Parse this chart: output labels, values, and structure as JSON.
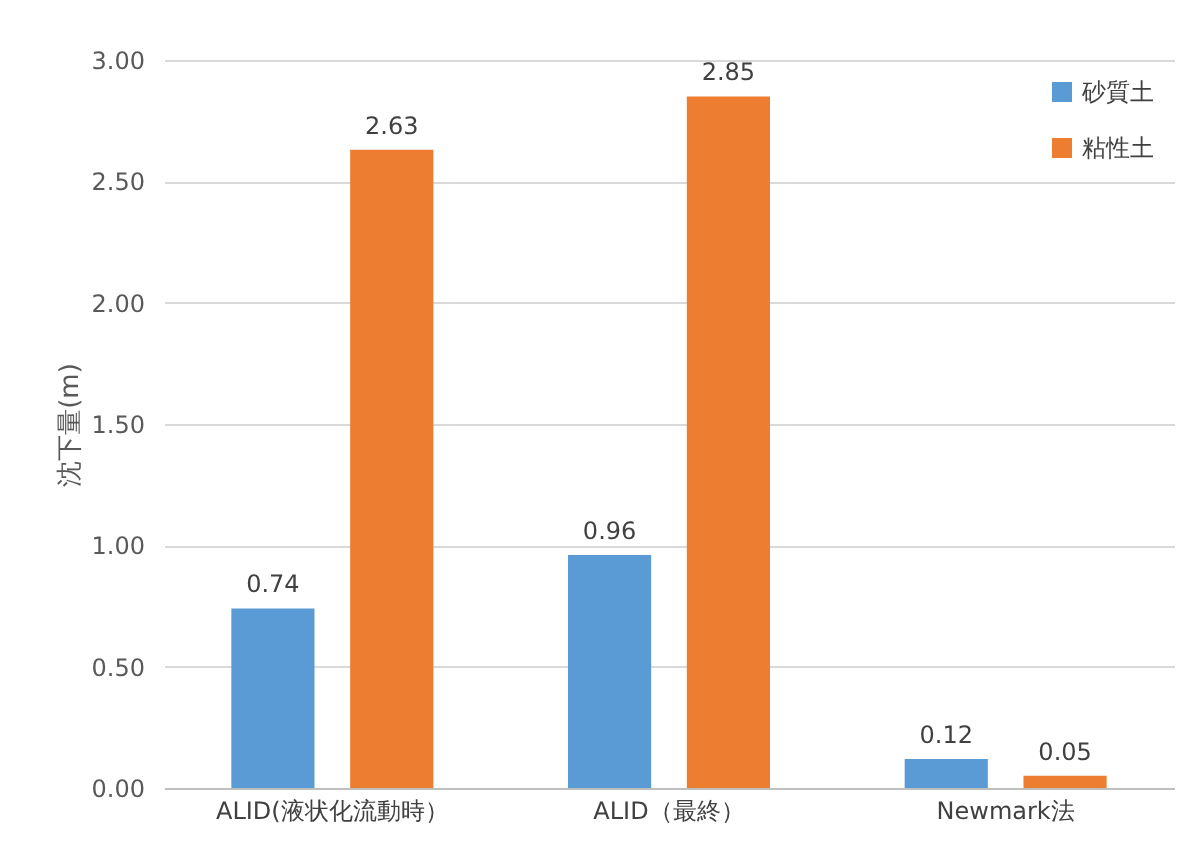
{
  "chart_data": {
    "type": "bar",
    "ylabel": "沈下量(m)",
    "categories": [
      "ALID(液状化流動時）",
      "ALID（最終）",
      "Newmark法"
    ],
    "series": [
      {
        "name": "砂質土",
        "color": "#5b9bd5",
        "values": [
          0.74,
          0.96,
          0.12
        ]
      },
      {
        "name": "粘性土",
        "color": "#ed7d31",
        "values": [
          2.63,
          2.85,
          0.05
        ]
      }
    ],
    "ylim": [
      0,
      3
    ],
    "yticks": [
      {
        "value": 0,
        "label": "0.00"
      },
      {
        "value": 0.5,
        "label": "0.50"
      },
      {
        "value": 1,
        "label": "1.00"
      },
      {
        "value": 1.5,
        "label": "1.50"
      },
      {
        "value": 2,
        "label": "2.00"
      },
      {
        "value": 2.5,
        "label": "2.50"
      },
      {
        "value": 3,
        "label": "3.00"
      }
    ],
    "grid": "y",
    "legend": "top right",
    "data_labels": true
  }
}
